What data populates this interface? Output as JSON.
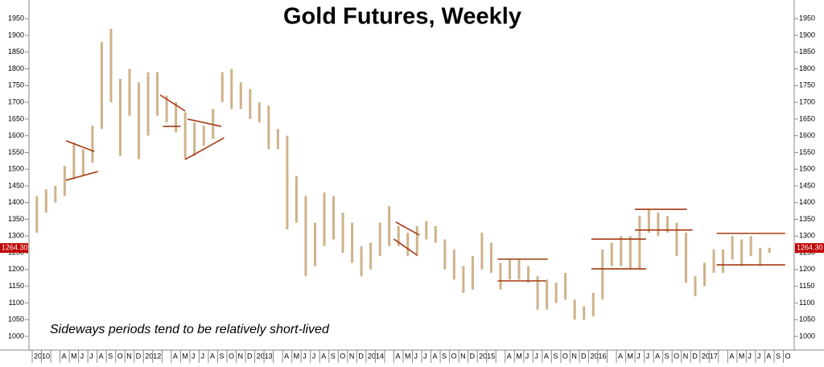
{
  "chart_data": {
    "type": "range-bar",
    "title": "Gold Futures, Weekly",
    "annotation": "Sideways periods tend to be relatively short-lived",
    "categories": [
      "2010",
      null,
      null,
      "A",
      "M",
      "J",
      "J",
      "A",
      "S",
      "O",
      "N",
      "D",
      "2012",
      null,
      null,
      "A",
      "M",
      "J",
      "J",
      "A",
      "S",
      "O",
      "N",
      "D",
      "2013",
      null,
      null,
      "A",
      "M",
      "J",
      "J",
      "A",
      "S",
      "O",
      "N",
      "D",
      "2014",
      null,
      null,
      "A",
      "M",
      "J",
      "J",
      "A",
      "S",
      "O",
      "N",
      "D",
      "2015",
      null,
      null,
      "A",
      "M",
      "J",
      "J",
      "A",
      "S",
      "O",
      "N",
      "D",
      "2016",
      null,
      null,
      "A",
      "M",
      "J",
      "J",
      "A",
      "S",
      "O",
      "N",
      "D",
      "2017",
      null,
      null,
      "A",
      "M",
      "J",
      "J",
      "A",
      "S",
      "O"
    ],
    "high": [
      1420,
      1440,
      1450,
      1510,
      1580,
      1560,
      1630,
      1880,
      1920,
      1770,
      1800,
      1760,
      1790,
      1790,
      1720,
      1700,
      1670,
      1640,
      1630,
      1680,
      1790,
      1800,
      1760,
      1740,
      1700,
      1690,
      1620,
      1600,
      1480,
      1420,
      1340,
      1430,
      1420,
      1370,
      1340,
      1270,
      1280,
      1340,
      1390,
      1330,
      1310,
      1330,
      1345,
      1330,
      1290,
      1260,
      1210,
      1240,
      1310,
      1280,
      1220,
      1230,
      1230,
      1210,
      1180,
      1170,
      1160,
      1190,
      1110,
      1090,
      1130,
      1260,
      1280,
      1300,
      1300,
      1360,
      1380,
      1370,
      1360,
      1340,
      1310,
      1180,
      1220,
      1260,
      1260,
      1300,
      1290,
      1300,
      1265,
      1265,
      null,
      null
    ],
    "low": [
      1310,
      1370,
      1400,
      1420,
      1470,
      1480,
      1520,
      1620,
      1700,
      1540,
      1660,
      1530,
      1600,
      1660,
      1640,
      1610,
      1530,
      1540,
      1570,
      1590,
      1700,
      1680,
      1680,
      1650,
      1640,
      1560,
      1560,
      1320,
      1340,
      1180,
      1210,
      1270,
      1290,
      1250,
      1220,
      1180,
      1200,
      1240,
      1270,
      1270,
      1240,
      1240,
      1290,
      1280,
      1200,
      1170,
      1130,
      1140,
      1200,
      1190,
      1140,
      1170,
      1170,
      1160,
      1080,
      1080,
      1100,
      1110,
      1050,
      1050,
      1060,
      1110,
      1210,
      1210,
      1200,
      1200,
      1310,
      1300,
      1310,
      1240,
      1160,
      1120,
      1150,
      1190,
      1190,
      1230,
      1210,
      1240,
      1210,
      1250,
      null,
      null
    ],
    "color": "#cfb28a",
    "line_color": "#a33a12",
    "trendlines": [
      {
        "x": [
          3.65,
          6.7
        ],
        "y": [
          1585,
          1553
        ]
      },
      {
        "x": [
          3.65,
          7.1
        ],
        "y": [
          1467,
          1493
        ]
      },
      {
        "x": [
          13.8,
          16.5
        ],
        "y": [
          1722,
          1674
        ]
      },
      {
        "x": [
          14.1,
          16.0
        ],
        "y": [
          1628,
          1628
        ]
      },
      {
        "x": [
          16.75,
          20.4
        ],
        "y": [
          1650,
          1628
        ]
      },
      {
        "x": [
          16.5,
          20.7
        ],
        "y": [
          1529,
          1594
        ]
      },
      {
        "x": [
          39.2,
          41.75
        ],
        "y": [
          1342,
          1303
        ]
      },
      {
        "x": [
          39.0,
          41.5
        ],
        "y": [
          1291,
          1243
        ]
      },
      {
        "x": [
          50.2,
          55.6
        ],
        "y": [
          1231,
          1231
        ]
      },
      {
        "x": [
          50.2,
          55.4
        ],
        "y": [
          1166,
          1166
        ]
      },
      {
        "x": [
          60.3,
          66.2
        ],
        "y": [
          1291,
          1291
        ]
      },
      {
        "x": [
          60.3,
          66.2
        ],
        "y": [
          1202,
          1202
        ]
      },
      {
        "x": [
          65.0,
          70.6
        ],
        "y": [
          1380,
          1380
        ]
      },
      {
        "x": [
          65.0,
          71.2
        ],
        "y": [
          1318,
          1318
        ]
      },
      {
        "x": [
          73.8,
          81.2
        ],
        "y": [
          1308,
          1308
        ]
      },
      {
        "x": [
          73.8,
          81.2
        ],
        "y": [
          1214,
          1214
        ]
      }
    ],
    "last_price": {
      "value": 1264.3,
      "label": "1264.30"
    },
    "ylim": [
      959,
      2006
    ],
    "yticks": [
      1000,
      1050,
      1100,
      1150,
      1200,
      1250,
      1300,
      1350,
      1400,
      1450,
      1500,
      1550,
      1600,
      1650,
      1700,
      1750,
      1800,
      1850,
      1900,
      1950
    ]
  }
}
